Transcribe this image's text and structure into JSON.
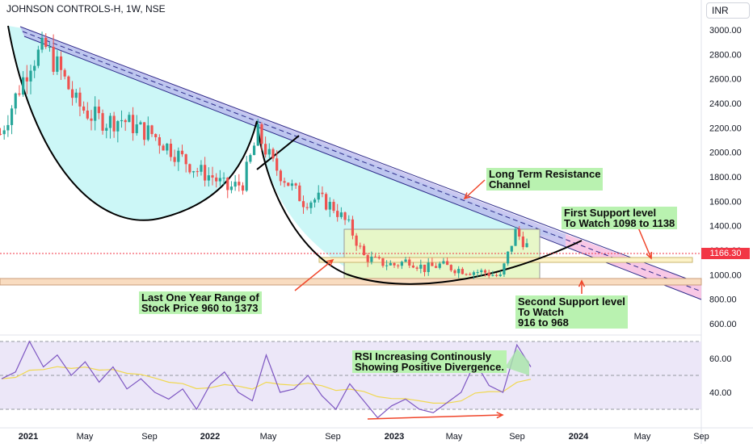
{
  "header": {
    "symbol_title": "JOHNSON CONTROLS-H, 1W, NSE",
    "currency": "INR"
  },
  "colors": {
    "candle_up": "#26a69a",
    "candle_down": "#ef5350",
    "bowl_fill": "#ccf7f7",
    "channel_fill": "#b8b6ec",
    "channel_fill_extension": "#f5b6dd",
    "range_box_fill": "#e7f7c8",
    "support_band_1": "#fdf3c9",
    "support_band_2": "#f9dcc0",
    "rsi_band": "#ece7f8",
    "rsi_line": "#7e57c2",
    "rsi_ma": "#f0d84f",
    "arrow": "#f0452a",
    "price_tag": "#f23645",
    "annotation_bg": "#b9f2b0"
  },
  "annotations": {
    "resistance": "Long Term Resistance\nChannel",
    "first_support": "First Support level\nTo Watch 1098 to 1138",
    "second_support": "Second Support level\nTo Watch\n916 to 968",
    "range": "Last One Year Range of\nStock Price 960 to 1373",
    "rsi": "RSI Increasing Continously\nShowing Positive Divergence."
  },
  "price_tag": "1166.30",
  "chart_data": [
    {
      "type": "candlestick",
      "title": "JOHNSON CONTROLS-H, 1W, NSE",
      "y_axis": {
        "ticks": [
          "3000.00",
          "2800.00",
          "2600.00",
          "2400.00",
          "2200.00",
          "2000.00",
          "1800.00",
          "1600.00",
          "1400.00",
          "1200.00",
          "1000.00",
          "800.00",
          "600.00"
        ],
        "range": [
          560,
          3050
        ]
      },
      "x_axis": {
        "ticks": [
          "2021",
          "May",
          "Sep",
          "2022",
          "May",
          "Sep",
          "2023",
          "May",
          "Sep",
          "2024",
          "May",
          "Sep"
        ],
        "bold_ticks": [
          "2021",
          "2022",
          "2023",
          "2024"
        ]
      },
      "last_price": 1166.3,
      "resistance_channel": {
        "start": [
          "2021",
          "3000 to 2920"
        ],
        "end": [
          "2024",
          "1140 to 1060"
        ]
      },
      "support_zones": [
        {
          "name": "First Support",
          "low": 1098,
          "high": 1138
        },
        {
          "name": "Second Support",
          "low": 916,
          "high": 968
        }
      ],
      "range_box": {
        "low": 960,
        "high": 1373,
        "period": "Last One Year"
      },
      "close_path": [
        [
          "2020-11",
          2150
        ],
        [
          "2020-12",
          2450
        ],
        [
          "2021-01",
          2750
        ],
        [
          "2021-02",
          2850
        ],
        [
          "2021-03",
          2650
        ],
        [
          "2021-04",
          2400
        ],
        [
          "2021-05",
          2300
        ],
        [
          "2021-06",
          2250
        ],
        [
          "2021-07",
          2270
        ],
        [
          "2021-08",
          2200
        ],
        [
          "2021-09",
          2150
        ],
        [
          "2021-10",
          2050
        ],
        [
          "2021-11",
          1950
        ],
        [
          "2021-12",
          1850
        ],
        [
          "2022-01",
          1800
        ],
        [
          "2022-02",
          1700
        ],
        [
          "2022-03",
          1750
        ],
        [
          "2022-04",
          2150
        ],
        [
          "2022-05",
          1900
        ],
        [
          "2022-06",
          1750
        ],
        [
          "2022-07",
          1600
        ],
        [
          "2022-08",
          1620
        ],
        [
          "2022-09",
          1550
        ],
        [
          "2022-10",
          1400
        ],
        [
          "2022-11",
          1150
        ],
        [
          "2022-12",
          1100
        ],
        [
          "2023-01",
          1080
        ],
        [
          "2023-02",
          1120
        ],
        [
          "2023-03",
          1050
        ],
        [
          "2023-04",
          1080
        ],
        [
          "2023-05",
          1050
        ],
        [
          "2023-06",
          1030
        ],
        [
          "2023-07",
          1020
        ],
        [
          "2023-08",
          980
        ],
        [
          "2023-09",
          1350
        ],
        [
          "2023-10",
          1200
        ]
      ]
    },
    {
      "type": "line",
      "title": "RSI",
      "y_axis": {
        "ticks": [
          "60.00",
          "40.00"
        ],
        "range": [
          22,
          80
        ]
      },
      "series": [
        {
          "values": [
            48,
            52,
            70,
            55,
            62,
            50,
            58,
            46,
            55,
            42,
            48,
            40,
            36,
            42,
            30,
            45,
            52,
            40,
            35,
            62,
            40,
            42,
            50,
            38,
            30,
            45,
            35,
            25,
            32,
            36,
            30,
            28,
            34,
            40,
            58,
            44,
            40,
            68,
            55
          ]
        }
      ]
    }
  ]
}
